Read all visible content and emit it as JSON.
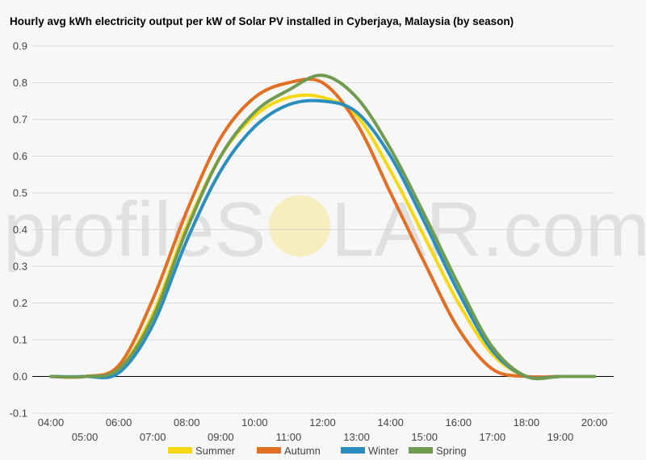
{
  "title": "Hourly avg kWh electricity output per kW of Solar PV installed in Cyberjaya, Malaysia (by season)",
  "watermark": {
    "text_left": "profileS",
    "text_right": "LAR.com",
    "sun_color": "#f6e9a8"
  },
  "chart_data": {
    "type": "line",
    "title": "Hourly avg kWh electricity output per kW of Solar PV installed in Cyberjaya, Malaysia (by season)",
    "xlabel": "",
    "ylabel": "",
    "x": [
      "04:00",
      "05:00",
      "06:00",
      "07:00",
      "08:00",
      "09:00",
      "10:00",
      "11:00",
      "12:00",
      "13:00",
      "14:00",
      "15:00",
      "16:00",
      "17:00",
      "18:00",
      "19:00",
      "20:00"
    ],
    "ylim": [
      -0.1,
      0.9
    ],
    "yticks": [
      "0.9",
      "0.8",
      "0.7",
      "0.6",
      "0.5",
      "0.4",
      "0.3",
      "0.2",
      "0.1",
      "0.0",
      "-0.1"
    ],
    "ytick_values": [
      0.9,
      0.8,
      0.7,
      0.6,
      0.5,
      0.4,
      0.3,
      0.2,
      0.1,
      0.0,
      -0.1
    ],
    "xticks_upper": [
      "04:00",
      "06:00",
      "08:00",
      "10:00",
      "12:00",
      "14:00",
      "16:00",
      "18:00",
      "20:00"
    ],
    "xticks_lower": [
      "05:00",
      "07:00",
      "09:00",
      "11:00",
      "13:00",
      "15:00",
      "17:00",
      "19:00"
    ],
    "grid": true,
    "legend_position": "bottom",
    "series": [
      {
        "name": "Summer",
        "color": "#f5d80f",
        "values": [
          0.0,
          0.0,
          0.02,
          0.17,
          0.41,
          0.6,
          0.71,
          0.76,
          0.76,
          0.71,
          0.56,
          0.38,
          0.2,
          0.06,
          0.0,
          0.0,
          0.0
        ]
      },
      {
        "name": "Autumn",
        "color": "#e36f23",
        "values": [
          0.0,
          0.0,
          0.03,
          0.21,
          0.45,
          0.65,
          0.76,
          0.8,
          0.8,
          0.69,
          0.5,
          0.31,
          0.13,
          0.02,
          0.0,
          0.0,
          0.0
        ]
      },
      {
        "name": "Winter",
        "color": "#2a8fbf",
        "values": [
          0.0,
          0.0,
          0.01,
          0.14,
          0.37,
          0.56,
          0.68,
          0.74,
          0.75,
          0.72,
          0.6,
          0.42,
          0.23,
          0.07,
          0.0,
          0.0,
          0.0
        ]
      },
      {
        "name": "Spring",
        "color": "#719b51",
        "values": [
          0.0,
          0.0,
          0.02,
          0.16,
          0.4,
          0.6,
          0.72,
          0.78,
          0.82,
          0.76,
          0.62,
          0.44,
          0.25,
          0.08,
          0.0,
          0.0,
          0.0
        ]
      }
    ]
  }
}
